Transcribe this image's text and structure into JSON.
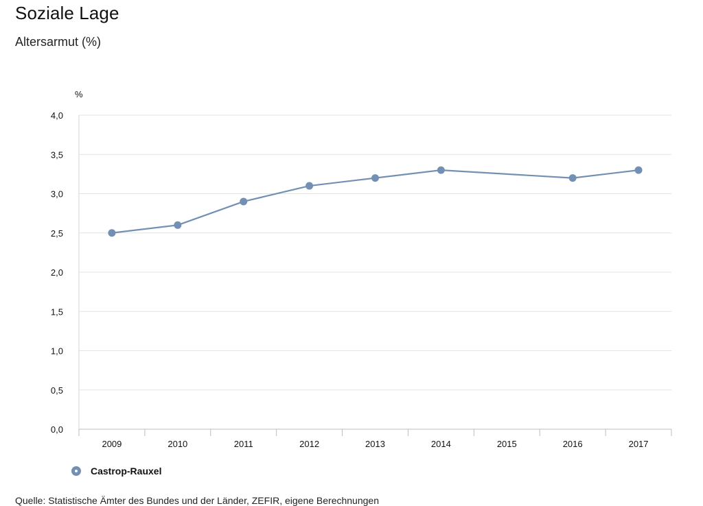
{
  "chart_data": {
    "type": "line",
    "title": "Soziale Lage",
    "subtitle": "Altersarmut (%)",
    "ylabel": "%",
    "xlabel": "",
    "ylim": [
      0,
      4
    ],
    "yticks": [
      "0,0",
      "0,5",
      "1,0",
      "1,5",
      "2,0",
      "2,5",
      "3,0",
      "3,5",
      "4,0"
    ],
    "grid": true,
    "categories": [
      "2009",
      "2010",
      "2011",
      "2012",
      "2013",
      "2014",
      "2015",
      "2016",
      "2017"
    ],
    "series": [
      {
        "name": "Castrop-Rauxel",
        "color": "#7190b3",
        "values": [
          2.5,
          2.6,
          2.9,
          3.1,
          3.2,
          3.3,
          null,
          3.2,
          3.3
        ]
      }
    ],
    "legend_position": "bottom-left",
    "source": "Quelle: Statistische Ämter des Bundes und der Länder, ZEFIR, eigene Berechnungen"
  }
}
